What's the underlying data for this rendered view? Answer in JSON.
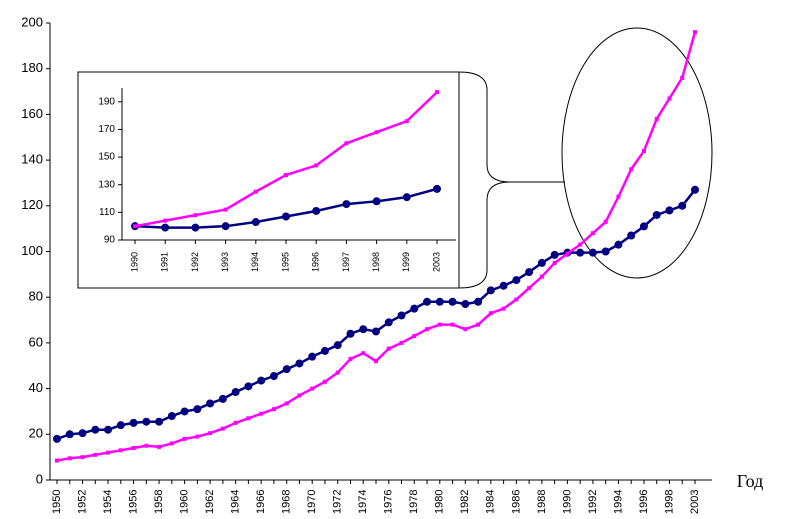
{
  "chart_data": [
    {
      "type": "line",
      "x_label": "Год",
      "categories": [
        "1950",
        null,
        "1952",
        null,
        "1954",
        null,
        "1956",
        null,
        "1958",
        null,
        "1960",
        null,
        "1962",
        null,
        "1964",
        null,
        "1966",
        null,
        "1968",
        null,
        "1970",
        null,
        "1972",
        null,
        "1974",
        null,
        "1976",
        null,
        "1978",
        null,
        "1980",
        null,
        "1982",
        null,
        "1984",
        null,
        "1986",
        null,
        "1988",
        null,
        "1990",
        null,
        "1992",
        null,
        "1994",
        null,
        "1996",
        null,
        "1998",
        null,
        "2003"
      ],
      "ylim": [
        0,
        200
      ],
      "yticks": [
        0,
        20,
        40,
        60,
        80,
        100,
        120,
        140,
        160,
        180,
        200
      ],
      "series": [
        {
          "color": "#000080",
          "marker": "circle",
          "values": [
            18,
            20,
            20.5,
            22,
            22,
            24,
            25,
            25.5,
            25.5,
            28,
            30,
            31,
            33.5,
            35.5,
            38.5,
            41,
            43.5,
            45.5,
            48.5,
            51,
            54,
            56.5,
            59,
            64,
            66,
            65,
            69,
            72,
            75,
            78,
            78,
            78,
            77,
            78,
            83,
            85,
            87.5,
            91,
            95,
            98.5,
            99.5,
            99.5,
            99.5,
            100,
            103,
            107,
            111,
            116,
            118,
            120,
            127
          ]
        },
        {
          "color": "#ff00ff",
          "marker": "square",
          "values": [
            8.5,
            9.5,
            10,
            11,
            12,
            13,
            14,
            15,
            14.5,
            16,
            18,
            19,
            20.5,
            22.5,
            25,
            27,
            29,
            31,
            33.5,
            37,
            40,
            43,
            47,
            53,
            55.5,
            52,
            57.5,
            60,
            63,
            66,
            68,
            68,
            66,
            68,
            73,
            75,
            79,
            84,
            89,
            95,
            99,
            103,
            108,
            113,
            124,
            136,
            144,
            158,
            167,
            176,
            196
          ]
        }
      ]
    },
    {
      "type": "line",
      "categories": [
        "1990",
        "1991",
        "1992",
        "1993",
        "1994",
        "1995",
        "1996",
        "1997",
        "1998",
        "1999",
        "2003"
      ],
      "ylim": [
        90,
        200
      ],
      "yticks": [
        90,
        110,
        130,
        150,
        170,
        190
      ],
      "series": [
        {
          "color": "#000080",
          "marker": "circle",
          "values": [
            100,
            99,
            99,
            100,
            103,
            107,
            111,
            116,
            118,
            121,
            127
          ]
        },
        {
          "color": "#ff00ff",
          "marker": "square",
          "values": [
            100,
            104,
            108,
            112,
            125,
            137,
            144,
            160,
            168,
            176,
            197
          ]
        }
      ]
    }
  ]
}
